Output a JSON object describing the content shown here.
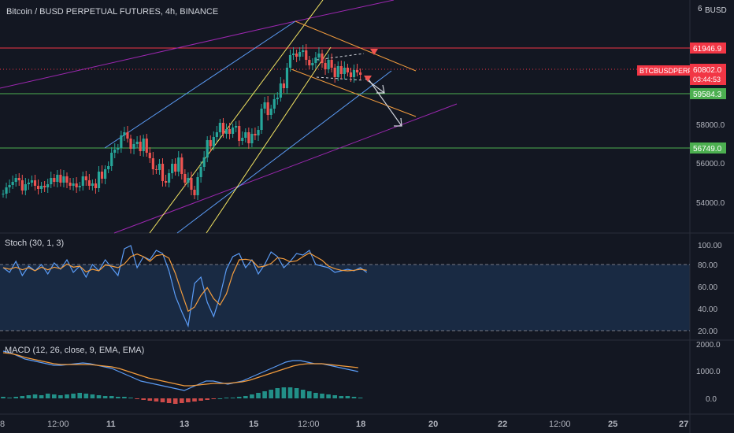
{
  "header": {
    "title": "Bitcoin / BUSD PERPETUAL FUTURES, 4h, BINANCE",
    "currency": "BUSD",
    "top_tick": "6"
  },
  "colors": {
    "bg": "#131722",
    "up": "#26a69a",
    "down": "#ef5350",
    "red_level": "#f23645",
    "green_level": "#4caf50",
    "purple": "#9c27b0",
    "blue": "#5b9cf6",
    "yellow": "#f5e663",
    "orange": "#f39c3d",
    "white": "#d1d4dc"
  },
  "main": {
    "price_labels": [
      {
        "text": "61946.9",
        "kind": "red"
      },
      {
        "text": "59584.3",
        "kind": "green"
      },
      {
        "text": "56749.0",
        "kind": "green"
      }
    ],
    "symbol_tag": {
      "symbol": "BTCBUSDPERP",
      "price": "60802.0",
      "countdown": "03:44:53"
    },
    "axis_ticks": [
      "58000.0",
      "56000.0",
      "54000.0"
    ]
  },
  "stoch": {
    "label": "Stoch (30, 1, 3)",
    "axis_ticks": [
      "100.00",
      "80.00",
      "60.00",
      "40.00",
      "20.00"
    ]
  },
  "macd": {
    "label": "MACD (12, 26, close, 9, EMA, EMA)",
    "axis_ticks": [
      "2000.0",
      "1000.0",
      "0.0"
    ]
  },
  "time_axis": {
    "labels": [
      "8",
      "12:00",
      "11",
      "13",
      "15",
      "12:00",
      "18",
      "20",
      "22",
      "12:00",
      "25",
      "27"
    ]
  }
}
